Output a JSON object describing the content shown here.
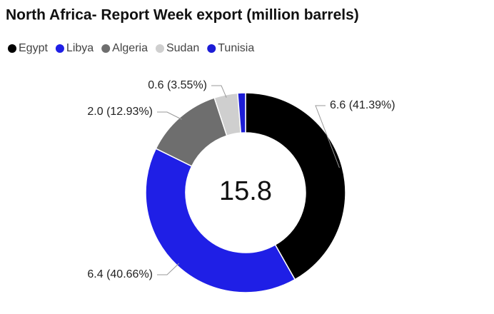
{
  "chart_data": {
    "type": "donut",
    "title": "North Africa- Report Week export (million barrels)",
    "categories": [
      "Egypt",
      "Libya",
      "Algeria",
      "Sudan",
      "Tunisia"
    ],
    "values": [
      6.6,
      6.4,
      2.0,
      0.6,
      0.2
    ],
    "value_labels": [
      "6.6 (41.39%)",
      "6.4 (40.66%)",
      "2.0 (12.93%)",
      "0.6 (3.55%)",
      null
    ],
    "colors": [
      "#000000",
      "#1f1fe6",
      "#6e6e6e",
      "#cfcfcf",
      "#1c1cd6"
    ],
    "total": 15.8,
    "legend": "top"
  }
}
